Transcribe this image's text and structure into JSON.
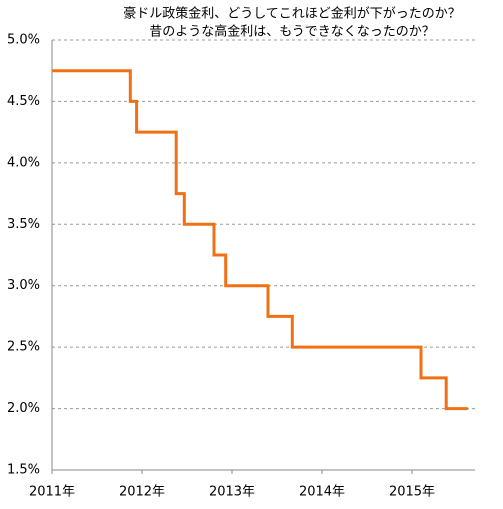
{
  "chart_data": {
    "type": "line",
    "step": "post",
    "title": "豪ドル政策金利、どうしてこれほど金利が下がったのか？",
    "subtitle": "昔のような高金利は、もうできなくなったのか？",
    "x": [
      2011.0,
      2011.87,
      2011.94,
      2012.38,
      2012.47,
      2012.8,
      2012.93,
      2013.4,
      2013.67,
      2015.1,
      2015.38,
      2015.62
    ],
    "series": [
      {
        "color": "#f07014",
        "values": [
          4.75,
          4.5,
          4.25,
          3.75,
          3.5,
          3.25,
          3.0,
          2.75,
          2.5,
          2.25,
          2.0,
          2.0
        ]
      }
    ],
    "xlim": [
      2011,
      2015.7
    ],
    "xticks": [
      {
        "value": 2011,
        "label": "2011年"
      },
      {
        "value": 2012,
        "label": "2012年"
      },
      {
        "value": 2013,
        "label": "2013年"
      },
      {
        "value": 2014,
        "label": "2014年"
      },
      {
        "value": 2015,
        "label": "2015年"
      }
    ],
    "ylim": [
      1.5,
      5.0
    ],
    "yticks": [
      {
        "value": 1.5,
        "label": "1.5%"
      },
      {
        "value": 2.0,
        "label": "2.0%"
      },
      {
        "value": 2.5,
        "label": "2.5%"
      },
      {
        "value": 3.0,
        "label": "3.0%"
      },
      {
        "value": 3.5,
        "label": "3.5%"
      },
      {
        "value": 4.0,
        "label": "4.0%"
      },
      {
        "value": 4.5,
        "label": "4.5%"
      },
      {
        "value": 5.0,
        "label": "5.0%"
      }
    ],
    "grid": true
  }
}
